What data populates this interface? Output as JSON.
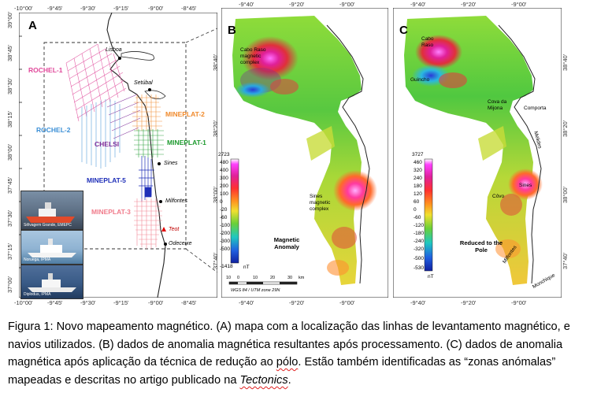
{
  "panel_a": {
    "label": "A",
    "top_ticks": [
      "-10°00'",
      "-9°45'",
      "-9°30'",
      "-9°15'",
      "-9°00'",
      "-8°45'"
    ],
    "bottom_ticks": [
      "-10°00'",
      "-9°45'",
      "-9°30'",
      "-9°15'",
      "-9°00'",
      "-8°45'"
    ],
    "left_ticks": [
      "39°00'",
      "38°45'",
      "38°30'",
      "38°15'",
      "38°00'",
      "37°45'",
      "37°30'",
      "37°15'",
      "37°00'"
    ],
    "survey_lines": [
      {
        "name": "ROCHEL-1",
        "color": "#e0489a"
      },
      {
        "name": "ROCHEL-2",
        "color": "#3b8fd6"
      },
      {
        "name": "CHELSI",
        "color": "#7d2a97"
      },
      {
        "name": "MINEPLAT-2",
        "color": "#f08a2c"
      },
      {
        "name": "MINEPLAT-1",
        "color": "#1d9a2e"
      },
      {
        "name": "MINEPLAT-5",
        "color": "#1f2fb8"
      },
      {
        "name": "MINEPLAT-3",
        "color": "#f07a8a"
      }
    ],
    "places": [
      "Lisboa",
      "Setúbal",
      "Sines",
      "Milfontes",
      "Teot",
      "Odeceixe"
    ],
    "photos": [
      {
        "caption": "Sêlvagem Grande, EMEPC"
      },
      {
        "caption": "Noruega, IPMA"
      },
      {
        "caption": "Diplodus, IPMA"
      }
    ]
  },
  "panel_b": {
    "label": "B",
    "top_ticks": [
      "-9°40'",
      "-9°20'",
      "-9°00'"
    ],
    "bottom_ticks": [
      "-9°40'",
      "-9°20'",
      "-9°00'"
    ],
    "left_ticks": [
      "38°40'",
      "38°20'",
      "38°00'",
      "37°40'"
    ],
    "labels": [
      "Cabo Raso magnetic complex",
      "Sines magnetic complex"
    ],
    "colorbar_ticks": [
      "2723",
      "480",
      "400",
      "300",
      "200",
      "100",
      "0",
      "-20",
      "-60",
      "-100",
      "-200",
      "-300",
      "-500",
      "-1418"
    ],
    "colorbar_unit": "nT",
    "legend_title": "Magnetic Anomaly",
    "scale_labels": [
      "10",
      "0",
      "10",
      "20",
      "30",
      "km"
    ],
    "projection": "WGS 84 / UTM zone 29N"
  },
  "panel_c": {
    "label": "C",
    "top_ticks": [
      "-9°40'",
      "-9°20'",
      "-9°00'"
    ],
    "bottom_ticks": [
      "-9°40'",
      "-9°20'",
      "-9°00'"
    ],
    "right_ticks": [
      "38°40'",
      "38°20'",
      "38°00'",
      "37°40'"
    ],
    "labels": [
      "Cabo Raso",
      "Guincho",
      "Cova da Mijona",
      "Comporta",
      "Melides",
      "Sines",
      "Côvo",
      "Milfontes",
      "Monchique"
    ],
    "colorbar_ticks": [
      "3727",
      "460",
      "320",
      "240",
      "180",
      "120",
      "60",
      "0",
      "-60",
      "-120",
      "-180",
      "-240",
      "-320",
      "-500",
      "-530"
    ],
    "colorbar_unit": "nT",
    "legend_title": "Reduced to the Pole"
  },
  "caption": {
    "prefix": "Figura 1: Novo mapeamento magnético. (A) mapa com a localização das linhas de levantamento magnético, e navios utilizados. (B) dados de anomalia magnética resultantes após processamento. (C) dados de anomalia magnética após aplicação da técnica de redução ao ",
    "word_polo": "pólo",
    "middle": ". Estão também identificadas as “zonas anómalas” mapeadas e descritas no artigo publicado na ",
    "journal": "Tectonics",
    "suffix": "."
  },
  "colors": {
    "rochel1": "#e0489a",
    "rochel2": "#3b8fd6",
    "chelsi": "#7d2a97",
    "mineplat2": "#f08a2c",
    "mineplat1": "#1d9a2e",
    "mineplat5": "#1f2fb8",
    "mineplat3": "#f07a8a"
  }
}
